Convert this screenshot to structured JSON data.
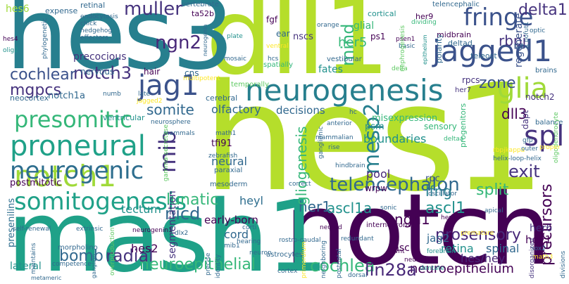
{
  "words": {
    "hes1": "hes1",
    "dll1": "dll1",
    "hes3": "hes3",
    "notch": "notch",
    "mash1": "mash1",
    "neurogenesis": "neurogenesis",
    "jagged1": "jagged1",
    "notch1": "notch1",
    "proneural": "proneural",
    "neurogenic": "neurogenic",
    "somitogenesis": "somitogenesis",
    "fringe": "fringe",
    "presomitic": "presomitic",
    "jag1": "jag1",
    "muller": "muller",
    "spl": "spl",
    "mesp2": "mesp2",
    "glia": "glia",
    "telencephalon": "telencephalon",
    "mib": "mib",
    "neuroepithelial": "neuroepithelial",
    "neuroepithelium": "neuroepithelium",
    "cochlea": "cochlea",
    "lin28a": "lin28a",
    "bomb": "bomb",
    "radial": "radial",
    "prosensory": "prosensory",
    "ascl1": "ascl1",
    "ascl1a": "ascl1a",
    "her1": "her1",
    "gliogenesis": "gliogenesis",
    "ngn2": "ngn2",
    "ngn1": "ngn1",
    "rbpj": "rbpj",
    "exit": "exit",
    "delta1": "delta1",
    "lunatic": "lunatic",
    "lfng": "lfng",
    "somite": "somite",
    "notch3": "notch3",
    "cochlear": "cochlear",
    "mgpcs": "mgpcs",
    "nicd": "nicd",
    "split": "split",
    "zone": "zone",
    "mind": "mind",
    "her5": "her5",
    "dll3": "dll3",
    "precursors": "precursors",
    "heyl": "heyl",
    "hes2": "hes2",
    "retina": "retina",
    "segmentation": "segmentation",
    "tectum": "tectum",
    "neural": "neural",
    "early_born": "early-born",
    "hey1": "hey1",
    "her6": "her6",
    "hes_hey": "hes/hey",
    "nsc": "nsc",
    "spinal": "spinal",
    "jag2": "jag2",
    "fates": "fates",
    "decisions": "decisions",
    "olfactory": "olfactory",
    "pool": "pool",
    "boundaries": "boundaries",
    "psm": "psm",
    "cord": "cord",
    "presenilins": "presenilins",
    "lateral": "lateral",
    "hes6": "hes6",
    "expense": "expense",
    "retinal": "retinal",
    "endocytosis": "endocytosis",
    "chick": "chick",
    "hedgehog": "hedgehog",
    "hes4": "hes4",
    "effectors": "effectors",
    "olig2": "olig2",
    "phylogenetic": "phylogenetic",
    "vertebrate": "vertebrate",
    "ta52b": "ta52b",
    "neurogenin": "neurogenin",
    "plate": "plate",
    "mosaic": "mosaic",
    "ear": "ear",
    "fgf": "fgf",
    "nscs": "nscs",
    "ps1": "ps1",
    "glial": "glial",
    "cortical": "cortical",
    "her9": "her9",
    "midbrain": "midbrain",
    "deltad": "deltad",
    "polarity": "polarity",
    "telencephalic": "telencephalic",
    "dividing": "dividing",
    "orange": "orange",
    "psen1": "psen1",
    "basic": "basic",
    "epithelium": "epithelium",
    "teleost": "teleost",
    "tube": "tube",
    "regenerate": "regenerate",
    "pofut1": "pofut1",
    "brains": "brains",
    "optic": "optic",
    "nephrogenesis": "nephrogenesis",
    "hcs": "hcs",
    "vestibular": "vestibular",
    "spatially": "spatially",
    "ventral": "ventral",
    "delta": "delta",
    "her7": "her7",
    "rpcs": "rpcs",
    "notch2": "notch2",
    "dapt": "dapt",
    "progenitors": "progenitors",
    "balance": "balance",
    "oligodendrocyte": "oligodendrocyte",
    "gfp": "gfp",
    "rbpjkappa": "rbpjkappa",
    "proper": "proper",
    "outer": "outer",
    "helix_loop_helix": "helix-loop-helix",
    "rpc": "rpc",
    "oscillator": "oscillator",
    "apical": "apical",
    "her3": "her3",
    "sonic": "sonic",
    "interneurons": "interneurons",
    "neurod": "neurod",
    "premature": "premature",
    "neurog1": "neurog1",
    "dentate": "dentate",
    "math3": "math3",
    "sox2": "sox2",
    "divisions": "divisions",
    "disorganized": "disorganized",
    "wnt": "wnt",
    "postnatal": "postnatal",
    "forebrain": "forebrain",
    "neighboring": "neighboring",
    "primordium": "primordium",
    "dorsal": "dorsal",
    "redundant": "redundant",
    "rostro_caudal": "rostro-caudal",
    "astrocytes": "astrocytes",
    "neuron": "neuron",
    "hearing": "hearing",
    "corti": "corti",
    "mib1": "mib1",
    "identity": "identity",
    "precise": "precise",
    "cortex": "cortex",
    "misexpression": "misexpression",
    "sensory": "sensory",
    "deltaa": "deltaa",
    "hindbrain": "hindbrain",
    "ganglionic": "ganglionic",
    "rise": "rise",
    "hc": "hc",
    "anterior": "anterior",
    "mammalian": "mammalian",
    "correct": "correct",
    "wrpw": "wrpw",
    "tfi91": "tfi91",
    "paraxial": "paraxial",
    "mesoderm": "mesoderm",
    "math1": "math1",
    "zebrafish": "zebrafish",
    "neurosphere": "neurosphere",
    "mammals": "mammals",
    "gamma_secretase": "gamma-secretase",
    "ventricular": "ventricular",
    "cerebral": "cerebral",
    "temporally": "temporally",
    "multipotent": "multipotent",
    "cns": "cns",
    "hair": "hair",
    "nervous": "nervous",
    "precocious": "precocious",
    "notch1a": "notch1a",
    "neocortex": "neocortex",
    "late": "late",
    "numb": "numb",
    "jagged2": "jagged2",
    "postmitotic": "postmitotic",
    "neurogenin1": "neurogenin1",
    "dlx2": "dlx2",
    "self_renewal": "self-renewal",
    "extrinsic": "extrinsic",
    "morpholino": "morpholino",
    "maintains": "maintains",
    "competence": "competence",
    "overproduction": "overproduction",
    "metameric": "metameric",
    "ganglion": "ganglion"
  }
}
